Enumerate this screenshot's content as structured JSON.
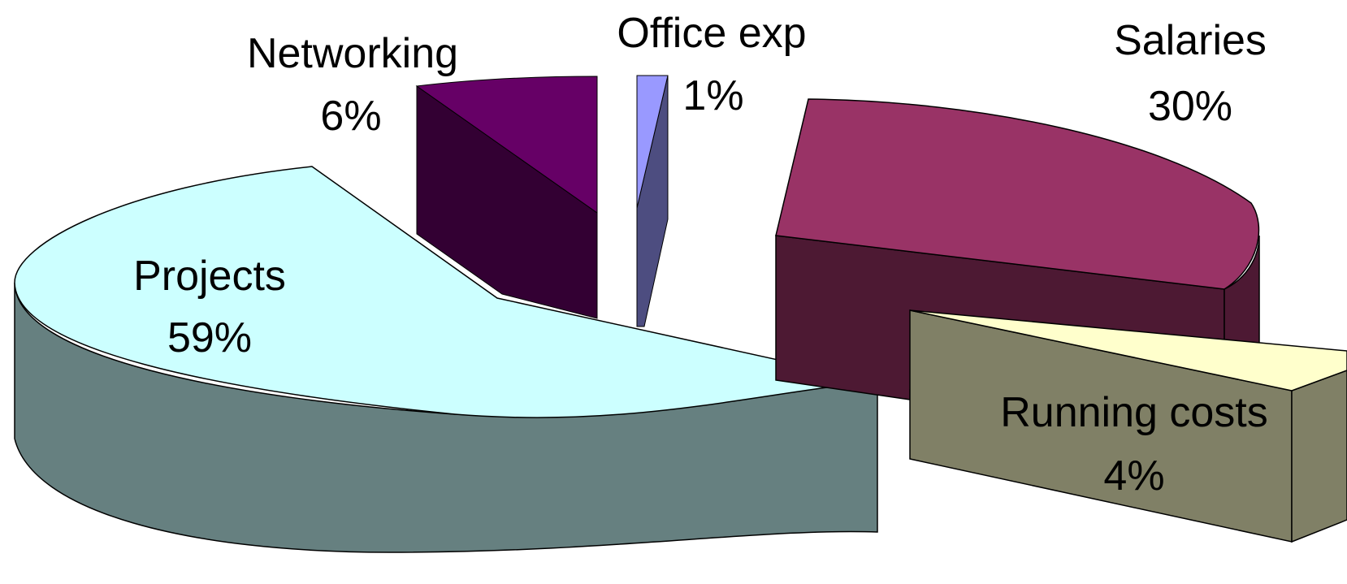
{
  "chart_data": {
    "type": "pie",
    "exploded": true,
    "three_d": true,
    "slices": [
      {
        "label": "Projects",
        "value": 59,
        "value_label": "59%",
        "color": "#CCFFFF",
        "side_color": "#668080"
      },
      {
        "label": "Networking",
        "value": 6,
        "value_label": "6%",
        "color": "#660066",
        "side_color": "#330033"
      },
      {
        "label": "Office exp",
        "value": 1,
        "value_label": "1%",
        "color": "#9999FF",
        "side_color": "#4D4D80"
      },
      {
        "label": "Salaries",
        "value": 30,
        "value_label": "30%",
        "color": "#993366",
        "side_color": "#4D1933"
      },
      {
        "label": "Running costs",
        "value": 4,
        "value_label": "4%",
        "color": "#FFFFCC",
        "side_color": "#808066"
      }
    ]
  }
}
